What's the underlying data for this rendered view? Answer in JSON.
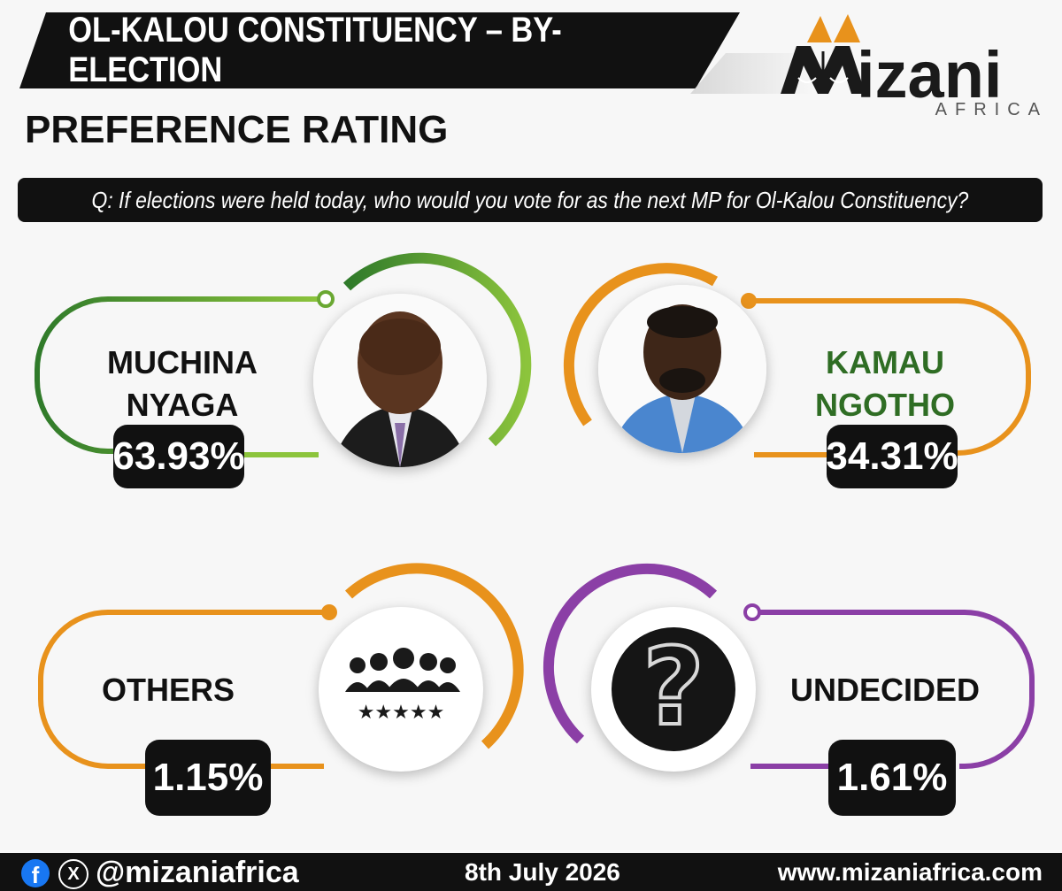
{
  "header": {
    "title": "OL-KALOU CONSTITUENCY – BY-ELECTION",
    "logo_word": "izani",
    "logo_sub": "AFRICA"
  },
  "subtitle": "PREFERENCE RATING",
  "question": "Q: If elections were held today, who would you vote for as the next MP for Ol-Kalou Constituency?",
  "colors": {
    "green": "#5fa12d",
    "orange": "#e8921c",
    "purple": "#8b3fa6",
    "dark": "#111111"
  },
  "chart_data": {
    "type": "table",
    "title": "PREFERENCE RATING",
    "categories": [
      "MUCHINA NYAGA",
      "KAMAU NGOTHO",
      "OTHERS",
      "UNDECIDED"
    ],
    "values": [
      63.93,
      34.31,
      1.15,
      1.61
    ],
    "labels": [
      "63.93%",
      "34.31%",
      "1.15%",
      "1.61%"
    ]
  },
  "cards": [
    {
      "name_line1": "MUCHINA",
      "name_line2": "NYAGA",
      "pct": "63.93%",
      "icon": "candidate-photo-icon"
    },
    {
      "name_line1": "KAMAU",
      "name_line2": "NGOTHO",
      "pct": "34.31%",
      "icon": "candidate-photo-icon"
    },
    {
      "name_line1": "OTHERS",
      "pct": "1.15%",
      "icon": "people-group-icon"
    },
    {
      "name_line1": "UNDECIDED",
      "pct": "1.61%",
      "icon": "question-mark-icon"
    }
  ],
  "footer": {
    "facebook_icon": "facebook-icon",
    "x_icon": "x-icon",
    "handle": "@mizaniafrica",
    "date": "8th July 2026",
    "website": "www.mizaniafrica.com"
  }
}
